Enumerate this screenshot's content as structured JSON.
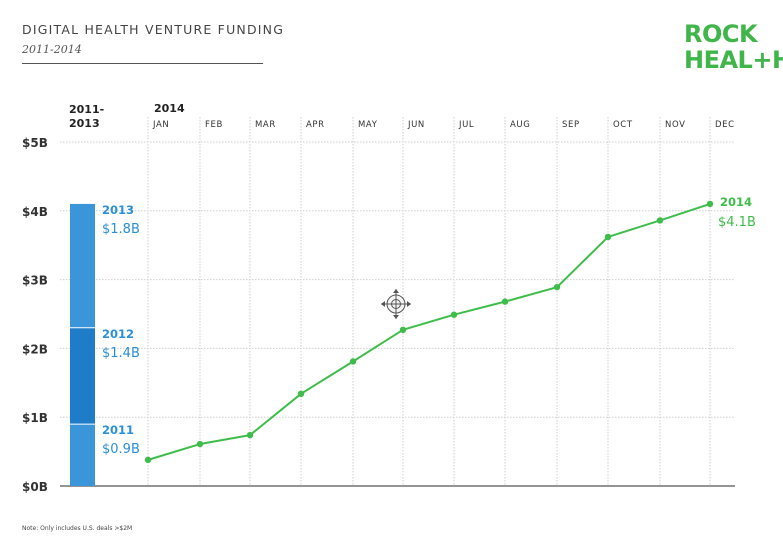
{
  "header": {
    "title": "DIGITAL HEALTH VENTURE FUNDING",
    "subtitle": "2011-2014"
  },
  "logo": {
    "line1": "ROCK",
    "line2_a": "HEAL",
    "line2_plus": "+",
    "line2_b": "H",
    "color": "#3fb54a"
  },
  "note": "Note: Only includes U.S. deals >$2M",
  "cursor": {
    "icon": "move-cursor-icon"
  },
  "chart_data": [
    {
      "type": "bar",
      "stacked": true,
      "header": [
        "2011-",
        "2013"
      ],
      "categories": [
        "2011-2013"
      ],
      "series": [
        {
          "name": "2011",
          "value": 0.9,
          "label": "$0.9B",
          "color": "#3a96d9"
        },
        {
          "name": "2012",
          "value": 1.4,
          "label": "$1.4B",
          "color": "#1f7cc9"
        },
        {
          "name": "2013",
          "value": 1.8,
          "label": "$1.8B",
          "color": "#3a96d9"
        }
      ],
      "ylim": [
        0,
        5
      ],
      "yticks": [
        0,
        1,
        2,
        3,
        4,
        5
      ],
      "ytick_labels": [
        "$0B",
        "$1B",
        "$2B",
        "$3B",
        "$4B",
        "$5B"
      ]
    },
    {
      "type": "line",
      "header": "2014",
      "x": [
        "JAN",
        "FEB",
        "MAR",
        "APR",
        "MAY",
        "JUN",
        "JUL",
        "AUG",
        "SEP",
        "OCT",
        "NOV",
        "DEC"
      ],
      "series": [
        {
          "name": "2014",
          "values": [
            0.38,
            0.61,
            0.74,
            1.34,
            1.81,
            2.27,
            2.49,
            2.68,
            2.89,
            3.62,
            3.86,
            4.1
          ],
          "color": "#3fbd4a"
        }
      ],
      "end_label": {
        "year": "2014",
        "value": "$4.1B"
      },
      "ylim": [
        0,
        5
      ],
      "grid": true
    }
  ]
}
